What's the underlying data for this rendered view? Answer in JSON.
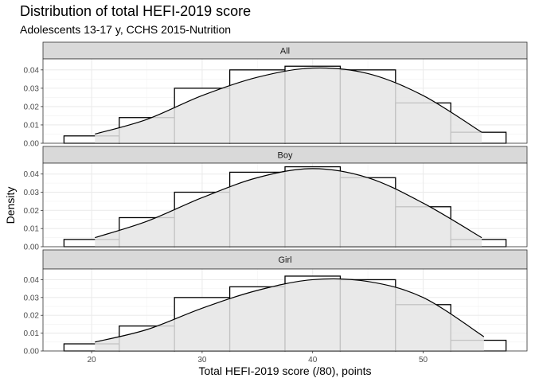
{
  "chart_data": {
    "type": "bar",
    "title": "Distribution of total HEFI-2019 score",
    "subtitle": "Adolescents 13-17 y, CCHS 2015-Nutrition",
    "xlabel": "Total HEFI-2019 score (/80), points",
    "ylabel": "Density",
    "xlim": [
      15.6,
      59.4
    ],
    "ylim": [
      0,
      0.046
    ],
    "x_ticks": [
      20,
      30,
      40,
      50
    ],
    "y_ticks": [
      0.0,
      0.01,
      0.02,
      0.03,
      0.04
    ],
    "y_tick_labels": [
      "0.00",
      "0.01",
      "0.02",
      "0.03",
      "0.04"
    ],
    "x_tick_labels": [
      "20",
      "30",
      "40",
      "50"
    ],
    "bin_edges": [
      17.5,
      22.5,
      27.5,
      32.5,
      37.5,
      42.5,
      47.5,
      52.5,
      57.5
    ],
    "grid": true,
    "colors": {
      "hist_fill": "#ffffff",
      "density_fill": "#e5e5e5",
      "strip": "#d9d9d9",
      "grid": "#ebebeb",
      "outline": "#000000"
    },
    "panels": [
      {
        "strip_label": "All",
        "histogram": [
          0.004,
          0.014,
          0.03,
          0.04,
          0.042,
          0.04,
          0.022,
          0.006
        ],
        "density": {
          "x": [
            20.3,
            25,
            30,
            35,
            40,
            45,
            50,
            55.3
          ],
          "y": [
            0.005,
            0.013,
            0.026,
            0.036,
            0.041,
            0.038,
            0.026,
            0.006
          ]
        }
      },
      {
        "strip_label": "Boy",
        "histogram": [
          0.004,
          0.016,
          0.03,
          0.041,
          0.044,
          0.038,
          0.022,
          0.004
        ],
        "density": {
          "x": [
            20.3,
            25,
            30,
            35,
            40,
            45,
            50,
            55.3
          ],
          "y": [
            0.005,
            0.014,
            0.027,
            0.038,
            0.043,
            0.038,
            0.024,
            0.005
          ]
        }
      },
      {
        "strip_label": "Girl",
        "histogram": [
          0.004,
          0.014,
          0.03,
          0.036,
          0.042,
          0.04,
          0.026,
          0.006
        ],
        "density": {
          "x": [
            20.3,
            25,
            30,
            35,
            40,
            45,
            50,
            55.5
          ],
          "y": [
            0.005,
            0.012,
            0.024,
            0.034,
            0.04,
            0.039,
            0.03,
            0.008
          ]
        }
      }
    ]
  }
}
